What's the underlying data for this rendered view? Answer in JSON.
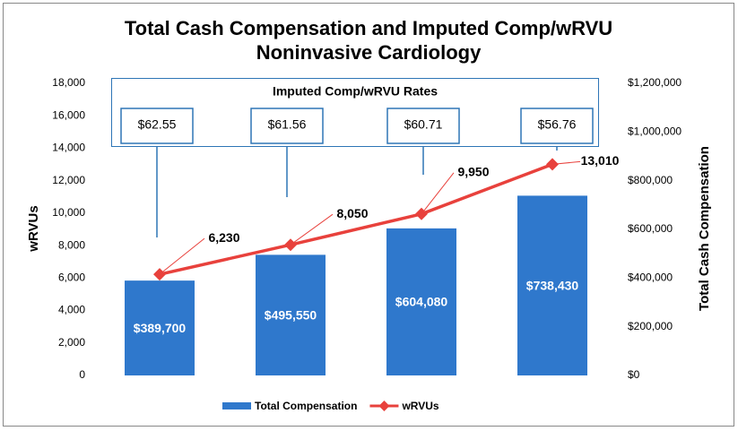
{
  "chart_data": {
    "type": "bar",
    "title": "Total Cash Compensation and Imputed Comp/wRVU",
    "subtitle": "Noninvasive Cardiology",
    "ylabel": "wRVUs",
    "y2label": "Total Cash Compensation",
    "categories": [
      null,
      null,
      null,
      null
    ],
    "series": [
      {
        "name": "Total Compensation",
        "type": "bar",
        "axis": "y2",
        "color": "#2f78cc",
        "values": [
          389700,
          495550,
          604080,
          738430
        ],
        "value_labels": [
          "$389,700",
          "$495,550",
          "$604,080",
          "$738,430"
        ]
      },
      {
        "name": "wRVUs",
        "type": "line",
        "color": "#e8413c",
        "values": [
          6230,
          8050,
          9950,
          13010
        ],
        "value_labels": [
          "6,230",
          "8,050",
          "9,950",
          "13,010"
        ]
      }
    ],
    "ylim": [
      0,
      18000
    ],
    "yticks": [
      0,
      {
        "value": 2000,
        "label": "2,000"
      },
      {
        "value": 4000,
        "label": "4,000"
      },
      {
        "value": 6000,
        "label": "6,000"
      },
      {
        "value": 8000,
        "label": "8,000"
      },
      {
        "value": 10000,
        "label": "10,000"
      },
      {
        "value": 12000,
        "label": "12,000"
      },
      {
        "value": 14000,
        "label": "14,000"
      },
      {
        "value": 16000,
        "label": "16,000"
      },
      {
        "value": 18000,
        "label": "18,000"
      }
    ],
    "y2lim": [
      0,
      1200000
    ],
    "y2ticks": [
      {
        "value": 0,
        "label": "$0"
      },
      {
        "value": 200000,
        "label": "$200,000"
      },
      {
        "value": 400000,
        "label": "$400,000"
      },
      {
        "value": 600000,
        "label": "$600,000"
      },
      {
        "value": 800000,
        "label": "$800,000"
      },
      {
        "value": 1000000,
        "label": "$1,000,000"
      },
      {
        "value": 1200000,
        "label": "$1,200,000"
      }
    ],
    "annotations": {
      "title": "Imputed Comp/wRVU Rates",
      "labels": [
        "$62.55",
        "$61.56",
        "$60.71",
        "$56.76"
      ]
    },
    "legend": "bottom",
    "grid": false
  }
}
